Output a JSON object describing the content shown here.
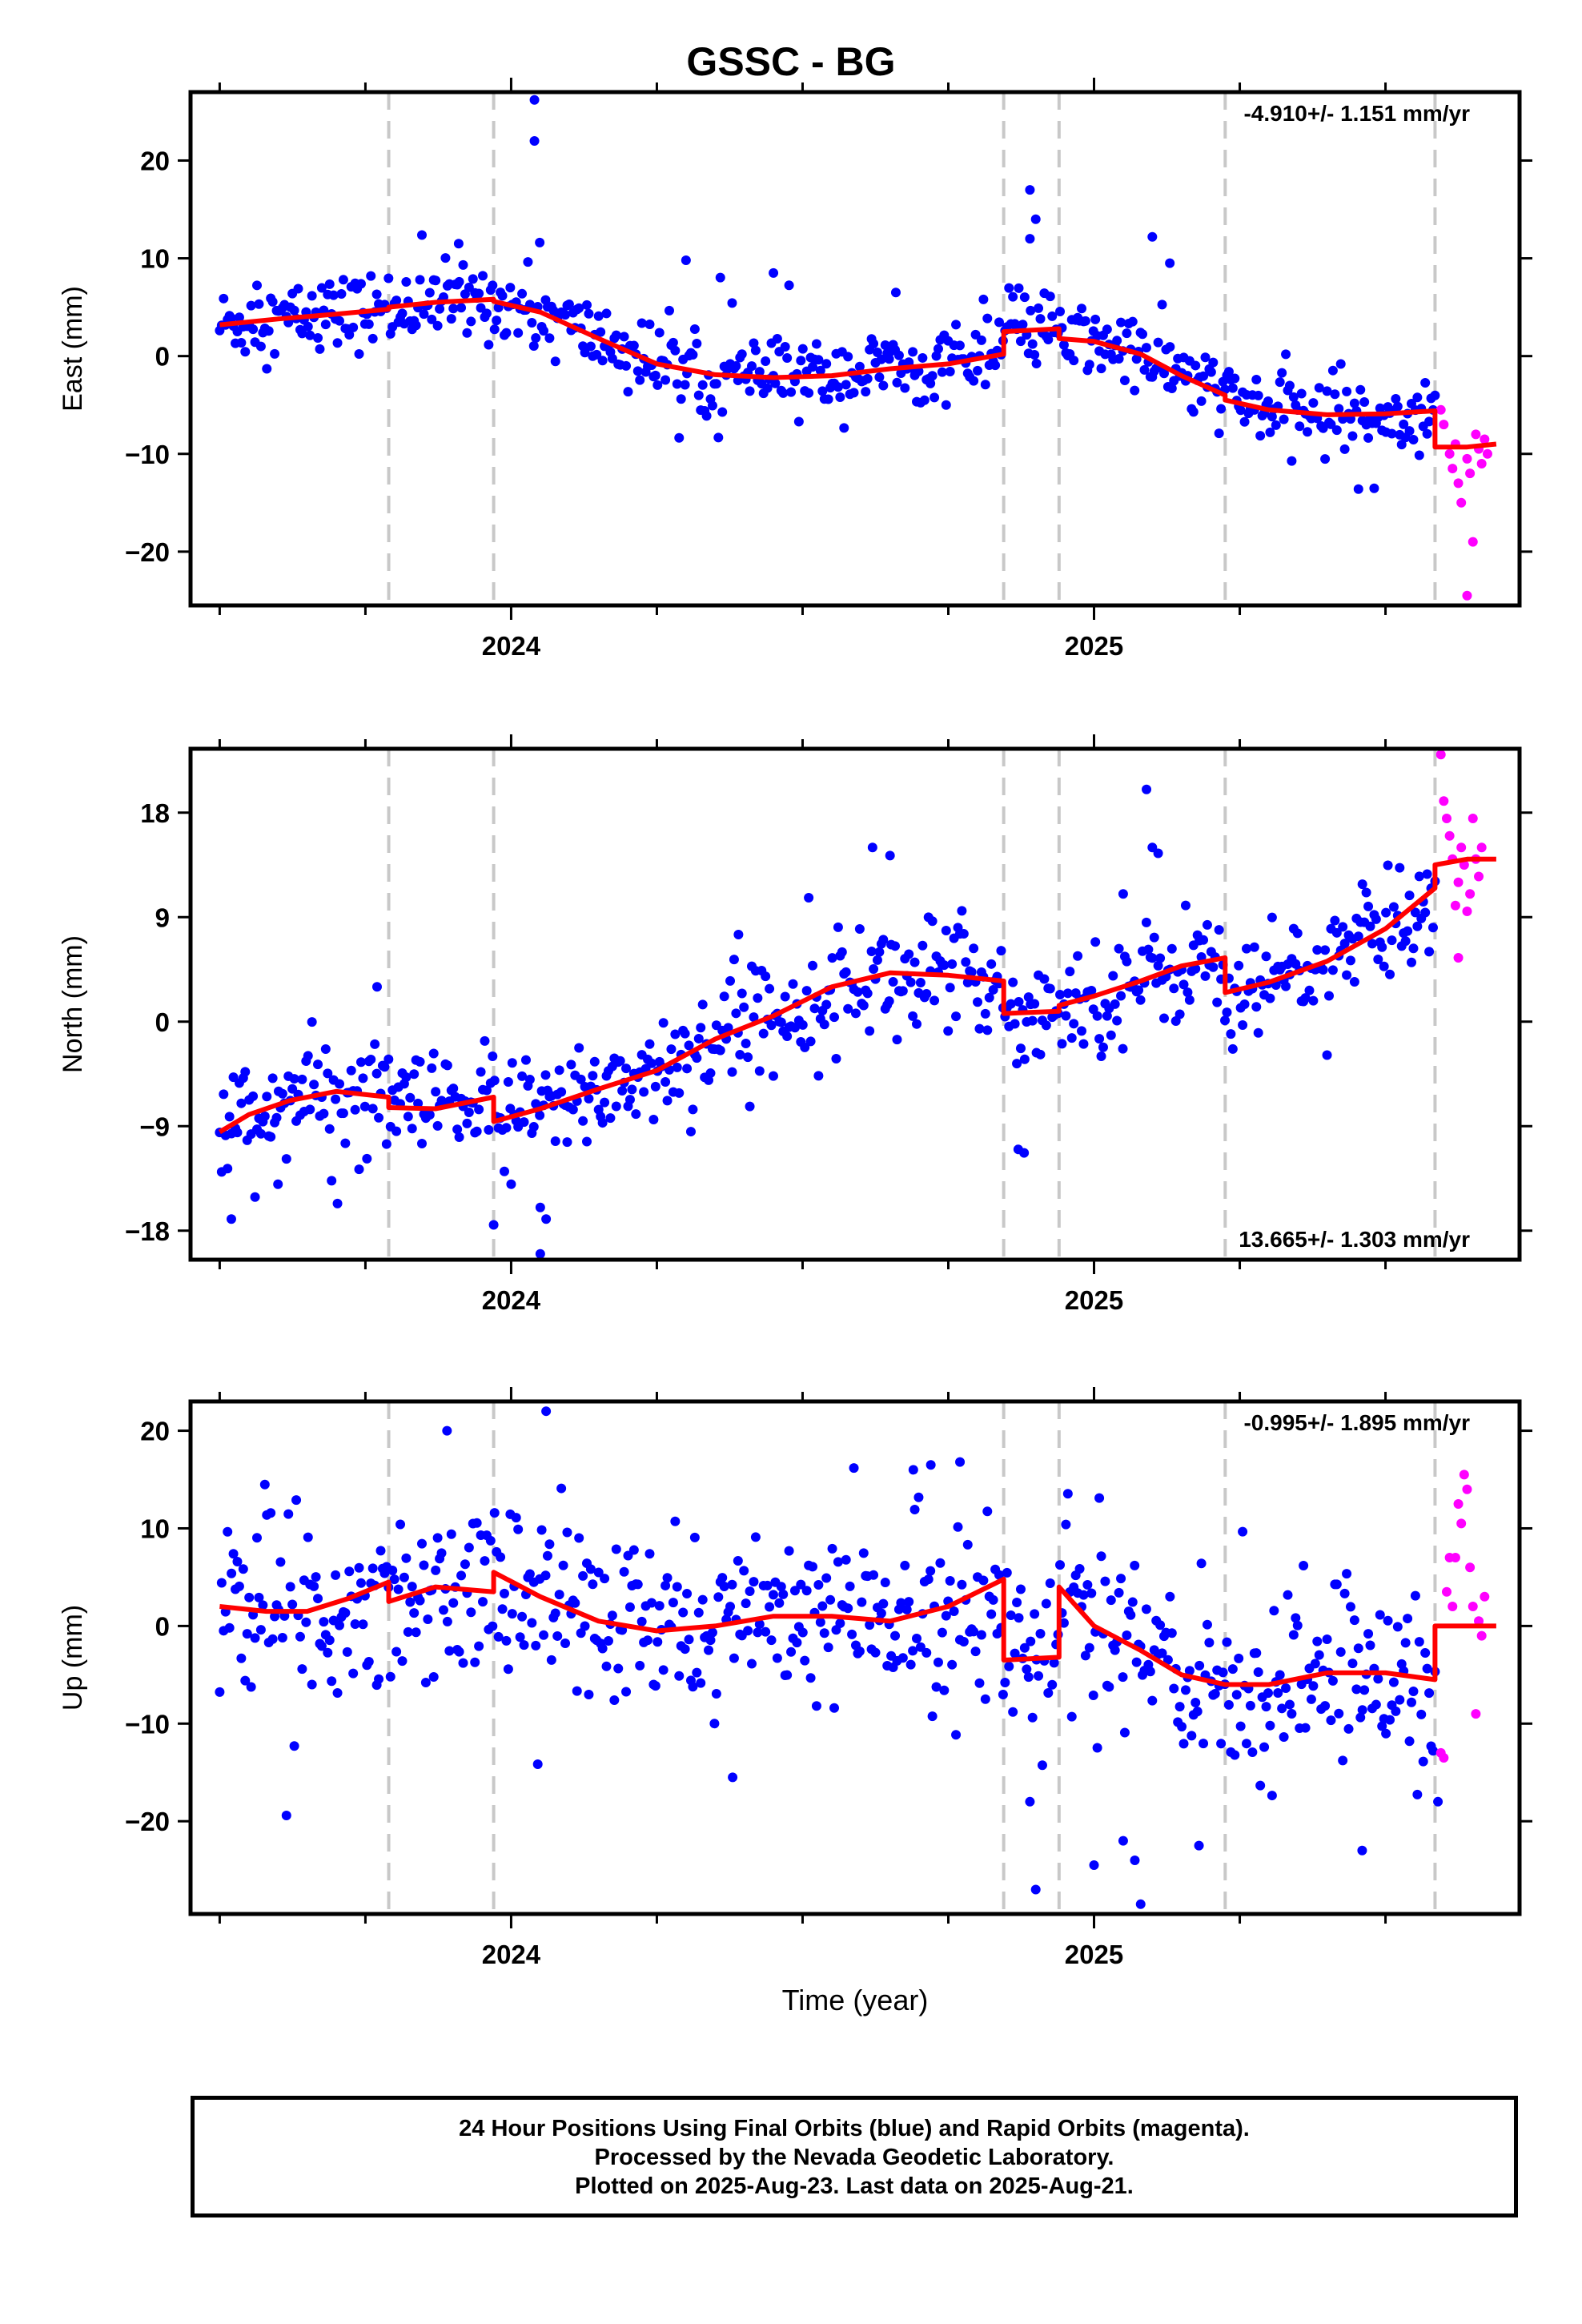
{
  "title": "GSSC - BG",
  "x_axis_label": "Time (year)",
  "footer": {
    "line1": "24 Hour Positions Using Final Orbits (blue) and Rapid Orbits (magenta).",
    "line2": "Processed by the Nevada Geodetic Laboratory.",
    "line3": "Plotted on 2025-Aug-23. Last data on 2025-Aug-21."
  },
  "colors": {
    "final_orbits": "#0000ff",
    "rapid_orbits": "#ff00ff",
    "model_fit": "#ff0000",
    "event_lines": "#c8c8c8"
  },
  "chart_data": [
    {
      "type": "scatter",
      "panel": "east",
      "ylabel": "East (mm)",
      "rate_label": "-4.910+/- 1.151 mm/yr",
      "rate_position": "top-right",
      "xlim": [
        2023.45,
        2025.73
      ],
      "ylim": [
        -25.5,
        27
      ],
      "x_ticks": [
        2024,
        2025
      ],
      "y_ticks": [
        -20,
        -10,
        0,
        10,
        20
      ],
      "event_lines_x": [
        2023.79,
        2023.97,
        2024.845,
        2024.94,
        2025.225,
        2025.585
      ],
      "model": {
        "segments": [
          {
            "x": [
              2023.5,
              2023.6,
              2023.7,
              2023.79
            ],
            "y": [
              3.2,
              3.8,
              4.3,
              4.8
            ]
          },
          {
            "x": [
              2023.79,
              2023.87,
              2023.97
            ],
            "y": [
              5.0,
              5.5,
              5.8
            ]
          },
          {
            "x": [
              2023.97,
              2024.05,
              2024.15,
              2024.25,
              2024.35,
              2024.45,
              2024.55,
              2024.65,
              2024.75,
              2024.845
            ],
            "y": [
              5.6,
              4.5,
              1.8,
              -0.8,
              -1.9,
              -2.2,
              -2.0,
              -1.3,
              -0.8,
              0.2
            ]
          },
          {
            "x": [
              2024.845,
              2024.94
            ],
            "y": [
              2.5,
              2.8
            ]
          },
          {
            "x": [
              2024.94,
              2025.0,
              2025.08,
              2025.15,
              2025.225
            ],
            "y": [
              1.8,
              1.5,
              0.2,
              -2.0,
              -4.0
            ]
          },
          {
            "x": [
              2025.225,
              2025.3,
              2025.4,
              2025.5,
              2025.585
            ],
            "y": [
              -4.5,
              -5.5,
              -6.0,
              -5.9,
              -5.6
            ]
          },
          {
            "x": [
              2025.585,
              2025.64,
              2025.69
            ],
            "y": [
              -9.3,
              -9.3,
              -9.0
            ]
          }
        ]
      },
      "outliers": [
        {
          "x": 2024.04,
          "y": 26.2
        },
        {
          "x": 2024.04,
          "y": 22.0
        },
        {
          "x": 2024.89,
          "y": 17.0
        },
        {
          "x": 2024.9,
          "y": 14.0
        },
        {
          "x": 2024.89,
          "y": 12.0
        },
        {
          "x": 2025.1,
          "y": 12.2
        },
        {
          "x": 2025.13,
          "y": 9.5
        },
        {
          "x": 2024.3,
          "y": 9.8
        },
        {
          "x": 2024.45,
          "y": 8.5
        },
        {
          "x": 2023.91,
          "y": 11.5
        },
        {
          "x": 2024.66,
          "y": 6.5
        }
      ],
      "rapid_points": [
        {
          "x": 2025.595,
          "y": -5.5
        },
        {
          "x": 2025.6,
          "y": -7.0
        },
        {
          "x": 2025.61,
          "y": -10.0
        },
        {
          "x": 2025.615,
          "y": -11.5
        },
        {
          "x": 2025.62,
          "y": -9.0
        },
        {
          "x": 2025.625,
          "y": -13.0
        },
        {
          "x": 2025.63,
          "y": -15.0
        },
        {
          "x": 2025.64,
          "y": -10.5
        },
        {
          "x": 2025.645,
          "y": -12.0
        },
        {
          "x": 2025.65,
          "y": -19.0
        },
        {
          "x": 2025.655,
          "y": -8.0
        },
        {
          "x": 2025.66,
          "y": -9.5
        },
        {
          "x": 2025.64,
          "y": -24.5
        },
        {
          "x": 2025.665,
          "y": -11.0
        },
        {
          "x": 2025.67,
          "y": -8.5
        },
        {
          "x": 2025.675,
          "y": -10.0
        }
      ],
      "scatter_sigma": 1.9,
      "final_point_count": 620
    },
    {
      "type": "scatter",
      "panel": "north",
      "ylabel": "North (mm)",
      "rate_label": "13.665+/- 1.303 mm/yr",
      "rate_position": "bottom-right",
      "xlim": [
        2023.45,
        2025.73
      ],
      "ylim": [
        -20.5,
        23.5
      ],
      "x_ticks": [
        2024,
        2025
      ],
      "y_ticks": [
        -18,
        -9,
        0,
        9,
        18
      ],
      "event_lines_x": [
        2023.79,
        2023.97,
        2024.845,
        2024.94,
        2025.225,
        2025.585
      ],
      "model": {
        "segments": [
          {
            "x": [
              2023.5,
              2023.55,
              2023.62,
              2023.7,
              2023.79
            ],
            "y": [
              -9.5,
              -8.0,
              -6.8,
              -6.0,
              -6.5
            ]
          },
          {
            "x": [
              2023.79,
              2023.87,
              2023.97
            ],
            "y": [
              -7.4,
              -7.5,
              -6.5
            ]
          },
          {
            "x": [
              2023.97,
              2024.05,
              2024.15,
              2024.25,
              2024.35,
              2024.45,
              2024.55,
              2024.65,
              2024.75,
              2024.845
            ],
            "y": [
              -8.6,
              -7.5,
              -5.8,
              -4.2,
              -1.5,
              0.5,
              3.0,
              4.2,
              4.0,
              3.5
            ]
          },
          {
            "x": [
              2024.845,
              2024.94
            ],
            "y": [
              0.7,
              0.9
            ]
          },
          {
            "x": [
              2024.94,
              2025.0,
              2025.08,
              2025.15,
              2025.225
            ],
            "y": [
              1.4,
              2.2,
              3.5,
              4.8,
              5.5
            ]
          },
          {
            "x": [
              2025.225,
              2025.3,
              2025.4,
              2025.5,
              2025.585
            ],
            "y": [
              2.5,
              3.4,
              5.2,
              8.0,
              11.5
            ]
          },
          {
            "x": [
              2025.585,
              2025.64,
              2025.69
            ],
            "y": [
              13.5,
              14.0,
              14.0
            ]
          }
        ]
      },
      "outliers": [
        {
          "x": 2023.77,
          "y": 3.0
        },
        {
          "x": 2023.52,
          "y": -17.0
        },
        {
          "x": 2024.05,
          "y": -16.0
        },
        {
          "x": 2024.05,
          "y": -20.0
        },
        {
          "x": 2024.06,
          "y": -17.0
        },
        {
          "x": 2024.0,
          "y": -14.0
        },
        {
          "x": 2023.97,
          "y": -17.5
        },
        {
          "x": 2023.6,
          "y": -14.0
        },
        {
          "x": 2024.87,
          "y": -11.0
        },
        {
          "x": 2024.88,
          "y": -11.3
        },
        {
          "x": 2024.62,
          "y": 15.0
        },
        {
          "x": 2024.65,
          "y": 14.3
        },
        {
          "x": 2025.09,
          "y": 20.0
        },
        {
          "x": 2025.1,
          "y": 15.0
        },
        {
          "x": 2025.11,
          "y": 14.5
        },
        {
          "x": 2025.05,
          "y": 11.0
        },
        {
          "x": 2024.39,
          "y": 7.5
        }
      ],
      "rapid_points": [
        {
          "x": 2025.595,
          "y": 23.0
        },
        {
          "x": 2025.6,
          "y": 19.0
        },
        {
          "x": 2025.605,
          "y": 17.5
        },
        {
          "x": 2025.61,
          "y": 16.0
        },
        {
          "x": 2025.615,
          "y": 14.0
        },
        {
          "x": 2025.62,
          "y": 10.0
        },
        {
          "x": 2025.625,
          "y": 12.0
        },
        {
          "x": 2025.63,
          "y": 15.0
        },
        {
          "x": 2025.635,
          "y": 13.5
        },
        {
          "x": 2025.64,
          "y": 9.5
        },
        {
          "x": 2025.645,
          "y": 11.0
        },
        {
          "x": 2025.65,
          "y": 17.5
        },
        {
          "x": 2025.655,
          "y": 14.0
        },
        {
          "x": 2025.66,
          "y": 12.5
        },
        {
          "x": 2025.625,
          "y": 5.5
        },
        {
          "x": 2025.665,
          "y": 15.0
        }
      ],
      "scatter_sigma": 2.4,
      "final_point_count": 620
    },
    {
      "type": "scatter",
      "panel": "up",
      "ylabel": "Up (mm)",
      "rate_label": "-0.995+/- 1.895 mm/yr",
      "rate_position": "top-right",
      "xlim": [
        2023.45,
        2025.73
      ],
      "ylim": [
        -29.5,
        23
      ],
      "x_ticks": [
        2024,
        2025
      ],
      "y_ticks": [
        -20,
        -10,
        0,
        10,
        20
      ],
      "event_lines_x": [
        2023.79,
        2023.97,
        2024.845,
        2024.94,
        2025.225,
        2025.585
      ],
      "model": {
        "segments": [
          {
            "x": [
              2023.5,
              2023.58,
              2023.65,
              2023.72,
              2023.79
            ],
            "y": [
              2.0,
              1.5,
              1.5,
              2.8,
              4.5
            ]
          },
          {
            "x": [
              2023.79,
              2023.87,
              2023.97
            ],
            "y": [
              2.5,
              4.0,
              3.5
            ]
          },
          {
            "x": [
              2023.97,
              2024.05,
              2024.15,
              2024.25,
              2024.35,
              2024.45,
              2024.55,
              2024.65,
              2024.75,
              2024.845
            ],
            "y": [
              5.5,
              3.0,
              0.5,
              -0.5,
              0.0,
              1.0,
              1.0,
              0.5,
              2.0,
              4.8
            ]
          },
          {
            "x": [
              2024.845,
              2024.94
            ],
            "y": [
              -3.5,
              -3.2
            ]
          },
          {
            "x": [
              2024.94,
              2025.0,
              2025.08,
              2025.15,
              2025.225
            ],
            "y": [
              4.0,
              0.0,
              -2.5,
              -5.0,
              -6.0
            ]
          },
          {
            "x": [
              2025.225,
              2025.3,
              2025.4,
              2025.5,
              2025.585
            ],
            "y": [
              -6.0,
              -6.0,
              -4.8,
              -4.8,
              -5.5
            ]
          },
          {
            "x": [
              2025.585,
              2025.64,
              2025.69
            ],
            "y": [
              0.0,
              0.0,
              0.0
            ]
          }
        ]
      },
      "outliers": [
        {
          "x": 2024.06,
          "y": 22.0
        },
        {
          "x": 2023.89,
          "y": 20.0
        },
        {
          "x": 2024.69,
          "y": 16.0
        },
        {
          "x": 2024.72,
          "y": 16.5
        },
        {
          "x": 2024.77,
          "y": 16.8
        },
        {
          "x": 2025.08,
          "y": -28.5
        },
        {
          "x": 2024.9,
          "y": -27.0
        },
        {
          "x": 2025.0,
          "y": -24.5
        },
        {
          "x": 2025.07,
          "y": -24.0
        },
        {
          "x": 2025.18,
          "y": -22.5
        },
        {
          "x": 2025.05,
          "y": -22.0
        },
        {
          "x": 2024.38,
          "y": -15.5
        },
        {
          "x": 2025.46,
          "y": -23.0
        },
        {
          "x": 2024.89,
          "y": -18.0
        },
        {
          "x": 2025.59,
          "y": -18.0
        }
      ],
      "rapid_points": [
        {
          "x": 2025.595,
          "y": -13.0
        },
        {
          "x": 2025.6,
          "y": -13.5
        },
        {
          "x": 2025.605,
          "y": 3.5
        },
        {
          "x": 2025.61,
          "y": 7.0
        },
        {
          "x": 2025.615,
          "y": 2.0
        },
        {
          "x": 2025.62,
          "y": 7.0
        },
        {
          "x": 2025.625,
          "y": 12.5
        },
        {
          "x": 2025.63,
          "y": 10.5
        },
        {
          "x": 2025.635,
          "y": 15.5
        },
        {
          "x": 2025.64,
          "y": 14.0
        },
        {
          "x": 2025.645,
          "y": 6.0
        },
        {
          "x": 2025.65,
          "y": 2.0
        },
        {
          "x": 2025.655,
          "y": -9.0
        },
        {
          "x": 2025.66,
          "y": 0.5
        },
        {
          "x": 2025.665,
          "y": -1.0
        },
        {
          "x": 2025.67,
          "y": 3.0
        }
      ],
      "scatter_sigma": 4.6,
      "final_point_count": 620
    }
  ]
}
